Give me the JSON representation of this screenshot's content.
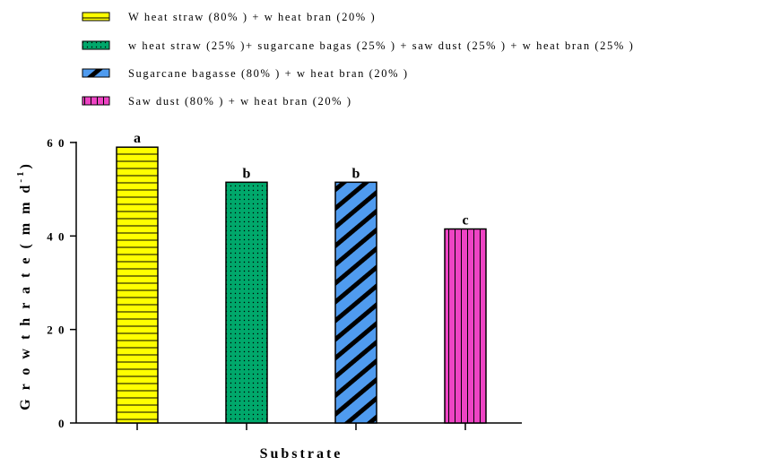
{
  "chart_data": {
    "type": "bar",
    "categories": [
      "Wheat straw (80%) + wheat bran (20%)",
      "wheat straw (25%)+ sugarcane bagas (25%) + sawdust (25%) + wheat bran (25%)",
      "Sugarcane bagasse (80%) + wheat bran (20%)",
      "Sawdust (80%) + wheat bran (20%)"
    ],
    "values": [
      59,
      51.5,
      51.5,
      41.5
    ],
    "significance_letters": [
      "a",
      "b",
      "b",
      "c"
    ],
    "legend": [
      {
        "label": "W heat straw (80% ) + w heat bran (20% )",
        "color": "#FFFF00",
        "pattern": "horizontal-lines"
      },
      {
        "label": "w heat straw (25% )+ sugarcane bagas (25% ) + saw dust (25% ) + w heat bran (25% )",
        "color": "#00A86B",
        "pattern": "dots"
      },
      {
        "label": "Sugarcane bagasse (80% ) + w heat bran (20% )",
        "color": "#4F9BEF",
        "pattern": "diagonal-stripes"
      },
      {
        "label": "Saw dust (80% ) + w heat bran (20% )",
        "color": "#EE44C4",
        "pattern": "vertical-lines"
      }
    ],
    "xlabel": "Substrate",
    "ylabel": "Growth rate (mm d-1)",
    "ylabel_parts": {
      "main": "G r o w t h   r a t e   ( m m   d",
      "superscript": "-1",
      "close": ")"
    },
    "ylim": [
      0,
      60
    ],
    "yticks": [
      0,
      20,
      40,
      60
    ],
    "ytick_labels": [
      "0",
      "2 0",
      "4 0",
      "6 0"
    ],
    "grid": false,
    "legend_position": "top-left"
  }
}
